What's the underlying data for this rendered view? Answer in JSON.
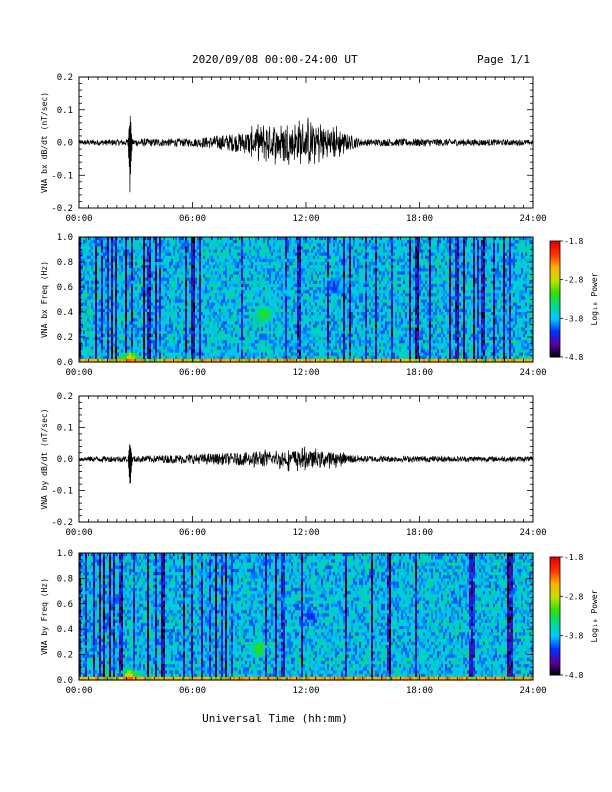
{
  "header": {
    "title": "2020/09/08  00:00-24:00 UT",
    "page": "Page 1/1"
  },
  "xaxis_title": "Universal Time (hh:mm)",
  "colorbar": {
    "label": "Log₁₀ Power",
    "ticks": [
      "-1.8",
      "-2.8",
      "-3.8",
      "-4.8"
    ],
    "colors": [
      "#000000",
      "#5a00a0",
      "#0030ff",
      "#00c8ff",
      "#00d890",
      "#30e000",
      "#c8e000",
      "#ffb000",
      "#ff3000",
      "#e00000"
    ]
  },
  "chart_data": [
    {
      "type": "line",
      "ylabel": "VNA bx dB/dt (nT/sec)",
      "x_ticks": [
        "00:00",
        "06:00",
        "12:00",
        "18:00",
        "24:00"
      ],
      "y_ticks": [
        "0.2",
        "0.1",
        "0.0",
        "-0.1",
        "-0.2"
      ],
      "xlim": [
        "00:00",
        "24:00"
      ],
      "ylim": [
        -0.2,
        0.2
      ],
      "envelope": [
        {
          "x": "00:00",
          "amplitude": 0.008
        },
        {
          "x": "02:30",
          "amplitude": 0.01
        },
        {
          "x": "02:42",
          "max": 0.1,
          "min": -0.18
        },
        {
          "x": "03:00",
          "amplitude": 0.012
        },
        {
          "x": "06:00",
          "amplitude": 0.012
        },
        {
          "x": "08:30",
          "amplitude": 0.03
        },
        {
          "x": "10:00",
          "amplitude": 0.05
        },
        {
          "x": "11:30",
          "amplitude": 0.06
        },
        {
          "x": "13:00",
          "amplitude": 0.06
        },
        {
          "x": "14:00",
          "amplitude": 0.03
        },
        {
          "x": "15:00",
          "amplitude": 0.01
        },
        {
          "x": "18:00",
          "amplitude": 0.012
        },
        {
          "x": "24:00",
          "amplitude": 0.008
        }
      ]
    },
    {
      "type": "heatmap",
      "ylabel": "VNA bx Freq (Hz)",
      "x_ticks": [
        "00:00",
        "06:00",
        "12:00",
        "18:00",
        "24:00"
      ],
      "y_ticks": [
        "1.0",
        "0.8",
        "0.6",
        "0.4",
        "0.2",
        "0.0"
      ],
      "xlim": [
        "00:00",
        "24:00"
      ],
      "ylim": [
        0.0,
        1.0
      ],
      "zlim": [
        -4.8,
        -1.8
      ],
      "features": [
        {
          "x": "09:45",
          "y": 0.38,
          "value": -3.0
        },
        {
          "x": "02:42",
          "y": 0.02,
          "value": -2.2
        },
        {
          "x": "13:30",
          "y": 0.6,
          "value": -4.2
        }
      ]
    },
    {
      "type": "line",
      "ylabel": "VNA by dB/dt (nT/sec)",
      "x_ticks": [
        "00:00",
        "06:00",
        "12:00",
        "18:00",
        "24:00"
      ],
      "y_ticks": [
        "0.2",
        "0.1",
        "0.0",
        "-0.1",
        "-0.2"
      ],
      "xlim": [
        "00:00",
        "24:00"
      ],
      "ylim": [
        -0.2,
        0.2
      ],
      "envelope": [
        {
          "x": "00:00",
          "amplitude": 0.008
        },
        {
          "x": "02:30",
          "amplitude": 0.01
        },
        {
          "x": "02:42",
          "max": 0.06,
          "min": -0.11
        },
        {
          "x": "03:00",
          "amplitude": 0.01
        },
        {
          "x": "08:30",
          "amplitude": 0.02
        },
        {
          "x": "11:30",
          "amplitude": 0.03
        },
        {
          "x": "13:00",
          "amplitude": 0.025
        },
        {
          "x": "15:00",
          "amplitude": 0.01
        },
        {
          "x": "24:00",
          "amplitude": 0.008
        }
      ]
    },
    {
      "type": "heatmap",
      "ylabel": "VNA by Freq (Hz)",
      "x_ticks": [
        "00:00",
        "06:00",
        "12:00",
        "18:00",
        "24:00"
      ],
      "y_ticks": [
        "1.0",
        "0.8",
        "0.6",
        "0.4",
        "0.2",
        "0.0"
      ],
      "xlim": [
        "00:00",
        "24:00"
      ],
      "ylim": [
        0.0,
        1.0
      ],
      "zlim": [
        -4.8,
        -1.8
      ],
      "features": [
        {
          "x": "09:30",
          "y": 0.25,
          "value": -3.0
        },
        {
          "x": "02:42",
          "y": 0.02,
          "value": -2.2
        },
        {
          "x": "12:15",
          "y": 0.5,
          "value": -4.3
        }
      ]
    }
  ]
}
